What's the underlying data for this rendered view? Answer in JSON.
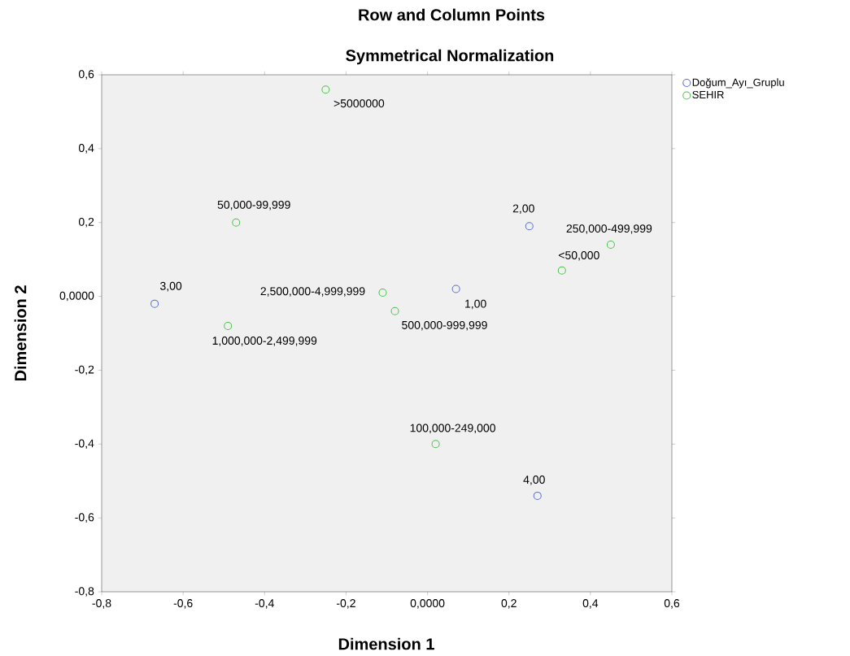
{
  "chart_data": {
    "type": "scatter",
    "title": "Row and Column Points",
    "subtitle": "Symmetrical Normalization",
    "xlabel": "Dimension 1",
    "ylabel": "Dimension 2",
    "xlim": [
      -0.8,
      0.6
    ],
    "ylim": [
      -0.8,
      0.6
    ],
    "xticks": [
      {
        "value": -0.8,
        "label": "-0,8"
      },
      {
        "value": -0.6,
        "label": "-0,6"
      },
      {
        "value": -0.4,
        "label": "-0,4"
      },
      {
        "value": -0.2,
        "label": "-0,2"
      },
      {
        "value": 0,
        "label": "0,0000"
      },
      {
        "value": 0.2,
        "label": "0,2"
      },
      {
        "value": 0.4,
        "label": "0,4"
      },
      {
        "value": 0.6,
        "label": "0,6"
      }
    ],
    "yticks": [
      {
        "value": -0.8,
        "label": "-0,8"
      },
      {
        "value": -0.6,
        "label": "-0,6"
      },
      {
        "value": -0.4,
        "label": "-0,4"
      },
      {
        "value": -0.2,
        "label": "-0,2"
      },
      {
        "value": 0,
        "label": "0,0000"
      },
      {
        "value": 0.2,
        "label": "0,2"
      },
      {
        "value": 0.4,
        "label": "0,4"
      },
      {
        "value": 0.6,
        "label": "0,6"
      }
    ],
    "marker": "circle",
    "legend": "top right",
    "grid": false,
    "series": [
      {
        "name": "Doğum_Ayı_Gruplu",
        "color": "#5a6fd0",
        "x": [
          0.07,
          0.25,
          -0.67,
          0.27
        ],
        "values": [
          0.02,
          0.19,
          -0.02,
          -0.54
        ]
      },
      {
        "name": "SEHIR",
        "color": "#4cc24c",
        "x": [
          -0.25,
          -0.47,
          0.45,
          0.33,
          -0.11,
          -0.08,
          -0.49,
          0.02
        ],
        "values": [
          0.56,
          0.2,
          0.14,
          0.07,
          0.01,
          -0.04,
          -0.08,
          -0.4
        ]
      }
    ],
    "annotations": [
      {
        "text": "1,00",
        "x": 0.07,
        "y": 0.02
      },
      {
        "text": "2,00",
        "x": 0.25,
        "y": 0.19
      },
      {
        "text": "3,00",
        "x": -0.67,
        "y": -0.02
      },
      {
        "text": "4,00",
        "x": 0.27,
        "y": -0.54
      },
      {
        "text": ">5000000",
        "x": -0.25,
        "y": 0.56
      },
      {
        "text": "50,000-99,999",
        "x": -0.47,
        "y": 0.2
      },
      {
        "text": "250,000-499,999",
        "x": 0.45,
        "y": 0.14
      },
      {
        "text": "<50,000",
        "x": 0.33,
        "y": 0.07
      },
      {
        "text": "2,500,000-4,999,999",
        "x": -0.11,
        "y": 0.01
      },
      {
        "text": "500,000-999,999",
        "x": -0.08,
        "y": -0.04
      },
      {
        "text": "1,000,000-2,499,999",
        "x": -0.49,
        "y": -0.08
      },
      {
        "text": "100,000-249,000",
        "x": 0.02,
        "y": -0.4
      }
    ]
  }
}
